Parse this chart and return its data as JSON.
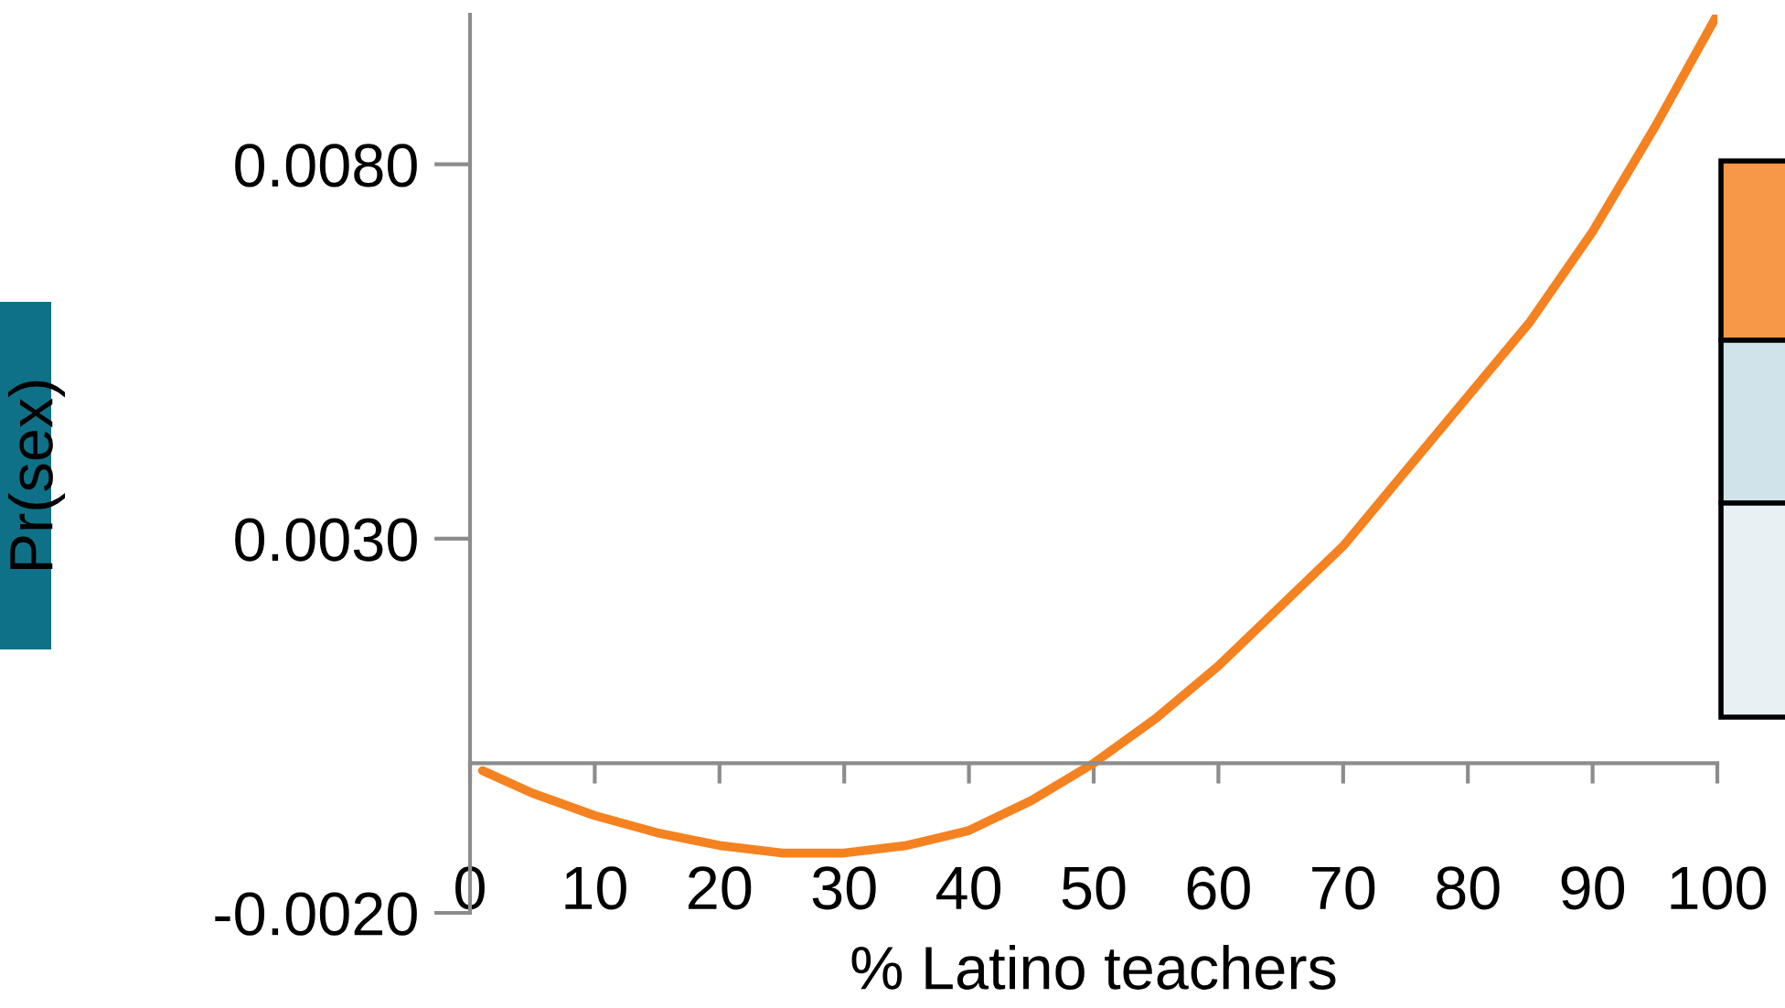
{
  "chart_data": {
    "type": "line",
    "xlabel": "% Latino teachers",
    "ylabel": "Pr(sex)",
    "x": [
      1,
      5,
      10,
      15,
      20,
      25,
      30,
      35,
      40,
      45,
      50,
      55,
      60,
      65,
      70,
      75,
      80,
      85,
      90,
      95,
      100
    ],
    "series": [
      {
        "color": "#f58220",
        "values": [
          -0.0001,
          -0.0004,
          -0.0007,
          -0.00093,
          -0.0011,
          -0.0012,
          -0.0012,
          -0.0011,
          -0.0009,
          -0.0005,
          0.0,
          0.0006,
          0.0013,
          0.0021,
          0.0029,
          0.0039,
          0.0049,
          0.0059,
          0.0071,
          0.0085,
          0.01
        ]
      }
    ],
    "xlim": [
      0,
      100
    ],
    "xticks": [
      0,
      10,
      20,
      30,
      40,
      50,
      60,
      70,
      80,
      90,
      100
    ],
    "ylim": [
      -0.002,
      0.01
    ],
    "yticks": [
      {
        "value": -0.002,
        "label": "-0.0020"
      },
      {
        "value": 0.003,
        "label": "0.0030"
      },
      {
        "value": 0.008,
        "label": "0.0080"
      }
    ]
  }
}
